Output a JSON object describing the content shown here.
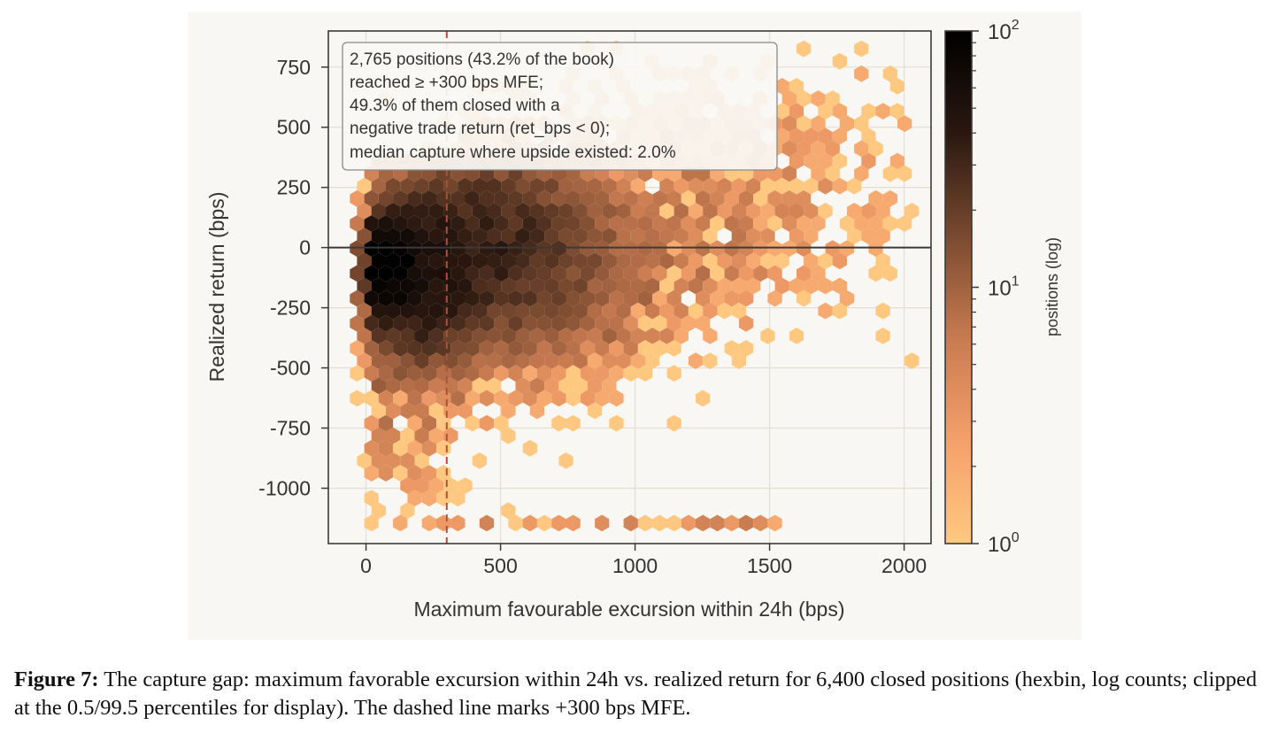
{
  "chart_data": {
    "type": "heatmap",
    "subtype": "hexbin",
    "xlabel": "Maximum favourable excursion within 24h (bps)",
    "ylabel": "Realized return (bps)",
    "xlim": [
      -140,
      2100
    ],
    "ylim": [
      -1230,
      900
    ],
    "xticks": [
      "0",
      "500",
      "1000",
      "1500",
      "2000"
    ],
    "yticks": [
      "750",
      "500",
      "250",
      "0",
      "-250",
      "-500",
      "-750",
      "-1000"
    ],
    "xtick_values": [
      0,
      500,
      1000,
      1500,
      2000
    ],
    "ytick_values": [
      750,
      500,
      250,
      0,
      -250,
      -500,
      -750,
      -1000
    ],
    "grid": true,
    "hline_y": 0,
    "vline_x": 300,
    "vline_style": "dashed",
    "colorbar": {
      "label": "positions (log)",
      "scale": "log",
      "min": 1,
      "max": 100,
      "ticks": [
        {
          "base": "10",
          "exp": "2",
          "value": 100
        },
        {
          "base": "10",
          "exp": "1",
          "value": 10
        },
        {
          "base": "10",
          "exp": "0",
          "value": 1
        }
      ],
      "colors": [
        "#ffc880",
        "#f5a06a",
        "#c87a50",
        "#7a4a30",
        "#2a1810",
        "#000000"
      ]
    },
    "annotation": [
      "2,765 positions (43.2% of the book)",
      "reached ≥ +300 bps MFE;",
      "49.3% of them closed with a",
      "negative trade return (ret_bps < 0);",
      "median capture where upside existed: 2.0%"
    ],
    "total_positions": 6400,
    "estimated_density_clusters": [
      {
        "x": 60,
        "y": -60,
        "count": 100
      },
      {
        "x": 200,
        "y": -150,
        "count": 45
      },
      {
        "x": 400,
        "y": 150,
        "count": 25
      },
      {
        "x": 550,
        "y": -100,
        "count": 15
      },
      {
        "x": 900,
        "y": 50,
        "count": 5
      },
      {
        "x": 1500,
        "y": 300,
        "count": 2
      }
    ]
  },
  "caption": {
    "label": "Figure 7:",
    "text": "The capture gap: maximum favorable excursion within 24h vs. realized return for 6,400 closed positions (hexbin, log counts; clipped at the 0.5/99.5 percentiles for display). The dashed line marks +300 bps MFE."
  }
}
